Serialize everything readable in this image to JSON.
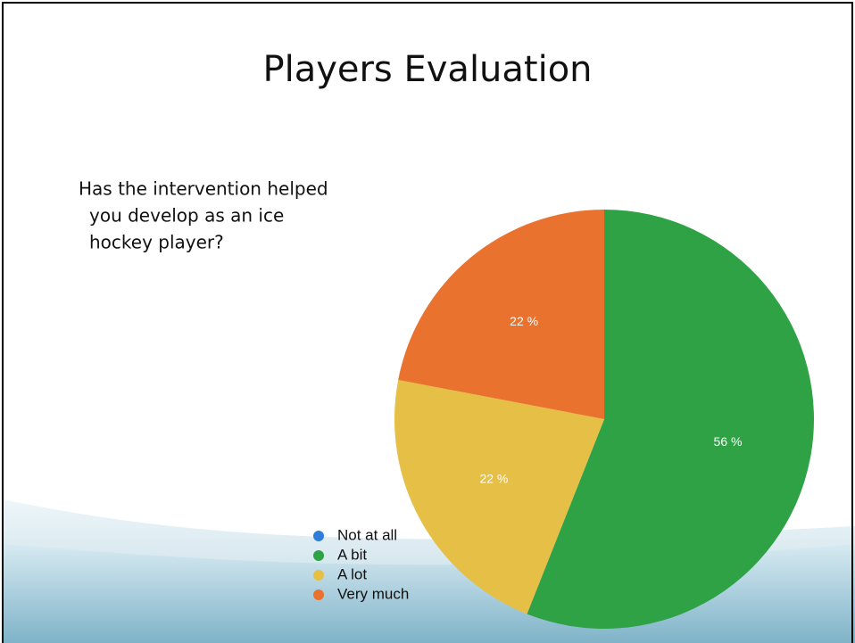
{
  "chart_data": {
    "type": "pie",
    "title": "Players Evaluation",
    "annotations": [
      "Has the intervention helped",
      "you develop as an ice",
      "hockey player?"
    ],
    "categories": [
      "Not at all",
      "A bit",
      "A lot",
      "Very much"
    ],
    "values": [
      0,
      56,
      22,
      22
    ],
    "value_labels": [
      null,
      "56 %",
      "22 %",
      "22 %"
    ],
    "colors": [
      "#2f7fd8",
      "#2ea245",
      "#e6bf47",
      "#e8722e"
    ],
    "legend": "bottom-left"
  }
}
